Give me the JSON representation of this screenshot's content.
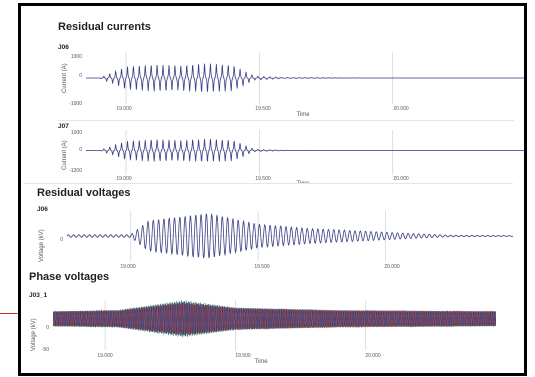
{
  "sections": {
    "residual_currents": "Residual currents",
    "residual_voltages": "Residual voltages",
    "phase_voltages": "Phase voltages"
  },
  "colors": {
    "signal": "#3b3f86",
    "phase_a": "#2e7d63",
    "phase_b": "#c0392b",
    "phase_c": "#3b3f86",
    "grid": "#d6d6d6"
  },
  "chart_data": [
    {
      "type": "line",
      "name": "J06",
      "section": "Residual currents",
      "xlabel": "Time",
      "ylabel": "Current (A)",
      "xticks": [
        "19.000",
        "19.500",
        "20.000"
      ],
      "xtick_values": [
        19.0,
        19.5,
        20.0
      ],
      "yticks": [
        "1000",
        "0",
        "-1000"
      ],
      "ytick_values": [
        1000,
        0,
        -1000
      ],
      "xlim": [
        18.85,
        20.5
      ],
      "ylim": [
        -1000,
        1000
      ],
      "series": [
        {
          "color": "#3b3f86",
          "x": [
            18.9,
            19.0,
            19.1,
            19.2,
            19.3,
            19.4,
            19.48,
            19.6,
            20.0,
            20.5
          ],
          "y": [
            0,
            430,
            520,
            480,
            560,
            500,
            80,
            15,
            0,
            0
          ]
        }
      ]
    },
    {
      "type": "line",
      "name": "J07",
      "section": "Residual currents",
      "xlabel": "Time",
      "ylabel": "Current (A)",
      "xticks": [
        "19.000",
        "19.500",
        "20.000"
      ],
      "xtick_values": [
        19.0,
        19.5,
        20.0
      ],
      "yticks": [
        "1000",
        "0",
        "-1200"
      ],
      "ytick_values": [
        1000,
        0,
        -1200
      ],
      "xlim": [
        18.85,
        20.5
      ],
      "ylim": [
        -1200,
        1000
      ],
      "series": [
        {
          "color": "#3b3f86",
          "x": [
            18.9,
            19.0,
            19.1,
            19.2,
            19.3,
            19.4,
            19.48,
            19.6,
            20.0,
            20.5
          ],
          "y": [
            0,
            450,
            550,
            500,
            560,
            520,
            60,
            10,
            0,
            0
          ]
        }
      ]
    },
    {
      "type": "line",
      "name": "J06",
      "section": "Residual voltages",
      "xlabel": "Time",
      "ylabel": "Voltage (kV)",
      "xticks": [
        "19.000",
        "19.500",
        "20.000"
      ],
      "xtick_values": [
        19.0,
        19.5,
        20.0
      ],
      "yticks": [
        "0"
      ],
      "ytick_values": [
        0
      ],
      "xlim": [
        18.75,
        20.5
      ],
      "ylim": [
        -30,
        30
      ],
      "series": [
        {
          "color": "#3b3f86",
          "x": [
            18.75,
            19.0,
            19.07,
            19.3,
            19.5,
            19.7,
            19.9,
            20.1,
            20.25,
            20.5
          ],
          "y": [
            1.5,
            1.5,
            18,
            27,
            14,
            9,
            6,
            3,
            1,
            0.5
          ]
        }
      ]
    },
    {
      "type": "line",
      "name": "J03_1",
      "section": "Phase voltages",
      "xlabel": "Time",
      "ylabel": "Voltage (kV)",
      "xticks": [
        "19.000",
        "19.500",
        "20.000"
      ],
      "xtick_values": [
        19.0,
        19.5,
        20.0
      ],
      "yticks": [
        "0",
        "-50"
      ],
      "ytick_values": [
        0,
        -50
      ],
      "xlim": [
        18.8,
        20.5
      ],
      "ylim": [
        -50,
        30
      ],
      "series": [
        {
          "color": "#2e7d63",
          "x": [
            18.8,
            19.05,
            19.3,
            19.5,
            19.9,
            20.5
          ],
          "y": [
            12,
            14,
            30,
            18,
            14,
            12
          ]
        },
        {
          "color": "#c0392b",
          "x": [
            18.8,
            19.05,
            19.3,
            19.5,
            19.9,
            20.5
          ],
          "y": [
            12,
            13,
            26,
            17,
            14,
            12
          ]
        },
        {
          "color": "#3b3f86",
          "x": [
            18.8,
            19.05,
            19.3,
            19.5,
            19.9,
            20.5
          ],
          "y": [
            12,
            14,
            28,
            18,
            13,
            12
          ]
        }
      ]
    }
  ]
}
